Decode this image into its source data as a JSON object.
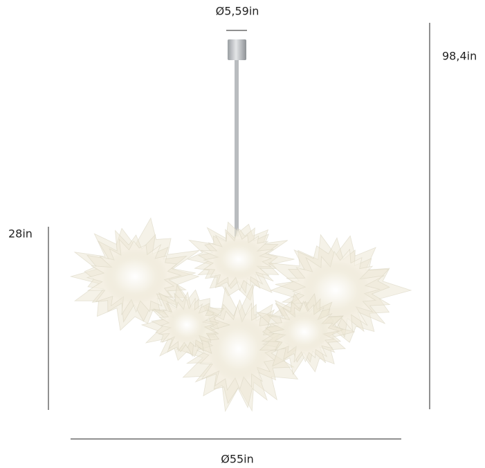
{
  "dimensions": {
    "canopy_diameter": "Ø5,59in",
    "total_height": "98,4in",
    "body_height": "28in",
    "body_diameter": "Ø55in"
  }
}
